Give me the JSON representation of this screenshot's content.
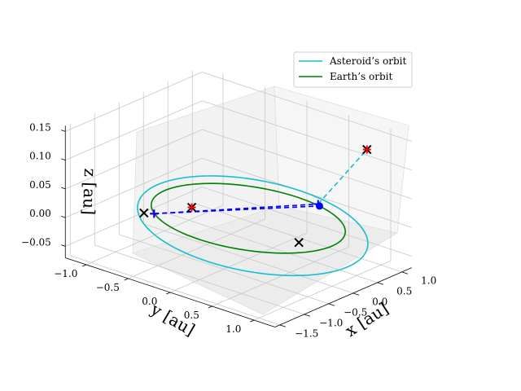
{
  "chart_data": {
    "type": "line",
    "projection": "3d",
    "title": "",
    "xlabel": "x [au]",
    "ylabel": "y [au]",
    "zlabel": "z [au]",
    "xlim": [
      -1.25,
      1.25
    ],
    "ylim": [
      -1.6,
      1.2
    ],
    "zlim": [
      -0.07,
      0.16
    ],
    "xticks": [
      "−1.0",
      "−0.5",
      "0.0",
      "0.5",
      "1.0"
    ],
    "yticks": [
      "1.0",
      "0.5",
      "0.0",
      "−0.5",
      "−1.0",
      "−1.5"
    ],
    "zticks": [
      "−0.05",
      "0.00",
      "0.05",
      "0.10",
      "0.15"
    ],
    "grid": true,
    "legend_position": "top-right",
    "colors": {
      "asteroid": "#17becf",
      "earth": "#008000",
      "transfer": "#0000ff",
      "marker_x": "#000000",
      "marker_plus": "#ff0000"
    },
    "series": [
      {
        "name": "Asteroid’s orbit",
        "kind": "ellipse",
        "semi_major_axis": 1.2,
        "eccentricity": 0.15,
        "inclination_deg": 6,
        "ascending_node_deg": 45,
        "arg_periapsis_deg": 90
      },
      {
        "name": "Earth’s orbit",
        "kind": "circle",
        "radius": 1.0,
        "z": 0.0
      }
    ],
    "transfer_legs": [
      {
        "from": [
          -0.71,
          -0.71,
          0.0
        ],
        "to": [
          0.25,
          1.0,
          0.0
        ],
        "color": "transfer",
        "style": "dashed"
      },
      {
        "from": [
          0.25,
          1.0,
          0.0
        ],
        "to": [
          0.85,
          0.97,
          0.125
        ],
        "color": "asteroid",
        "style": "dashed"
      },
      {
        "from": [
          -0.71,
          -0.71,
          0.0
        ],
        "to": [
          0.29,
          0.96,
          0.0
        ],
        "color": "transfer",
        "style": "dashed"
      }
    ],
    "points": [
      {
        "marker": "x",
        "color": "marker_x",
        "xyz": [
          0.85,
          0.97,
          0.125
        ]
      },
      {
        "marker": "x",
        "color": "marker_x",
        "xyz": [
          -0.15,
          -0.9,
          0.045
        ]
      },
      {
        "marker": "x",
        "color": "marker_x",
        "xyz": [
          -0.79,
          -0.78,
          0.0
        ]
      },
      {
        "marker": "x",
        "color": "marker_x",
        "xyz": [
          0.72,
          -0.2,
          0.0
        ]
      },
      {
        "marker": "plus",
        "color": "marker_plus",
        "xyz": [
          -0.15,
          -0.9,
          0.045
        ]
      },
      {
        "marker": "plus",
        "color": "marker_plus",
        "xyz": [
          0.85,
          0.97,
          0.125
        ]
      },
      {
        "marker": "plus",
        "color": "marker_plus",
        "xyz": [
          -0.71,
          -0.71,
          0.0
        ]
      },
      {
        "marker": "plus",
        "color": "transfer",
        "xyz": [
          0.25,
          1.0,
          0.0
        ]
      },
      {
        "marker": "plus",
        "color": "transfer",
        "xyz": [
          -0.71,
          -0.71,
          0.0
        ]
      },
      {
        "marker": "dot",
        "color": "transfer",
        "xyz": [
          0.29,
          0.96,
          0.0
        ]
      }
    ]
  }
}
